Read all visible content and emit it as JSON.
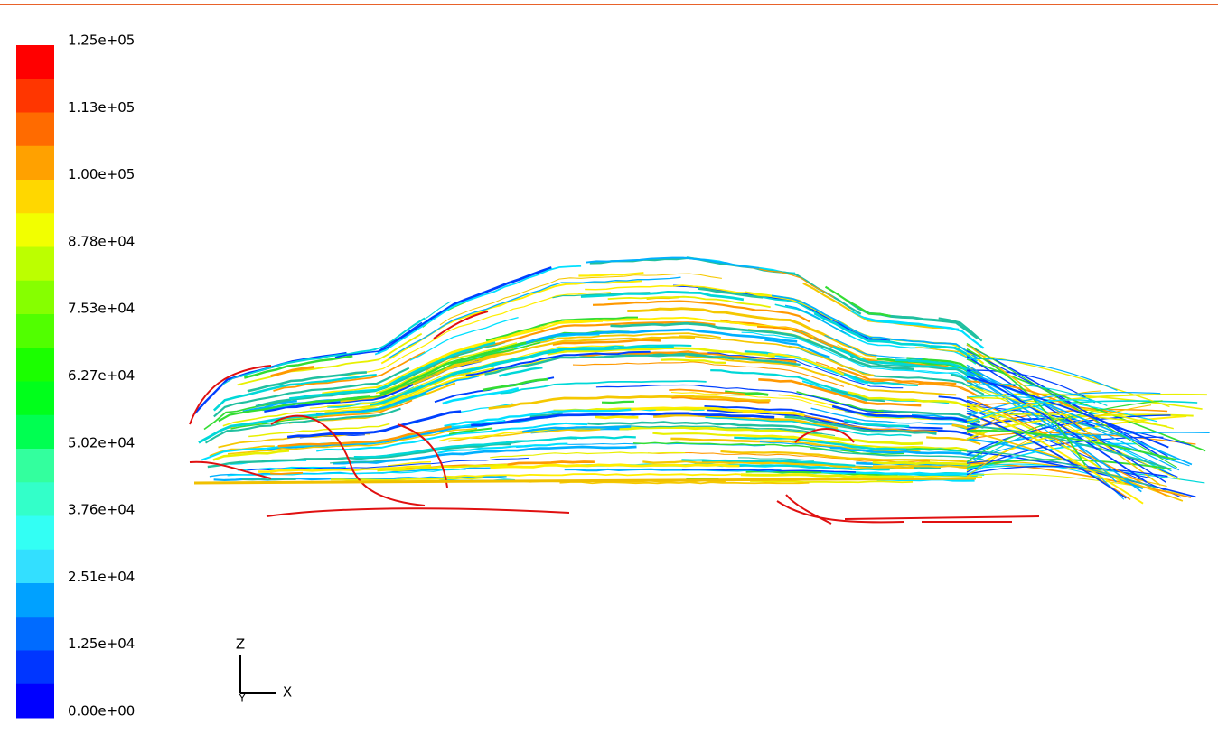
{
  "colorbar": {
    "labels": [
      "1.25e+05",
      "1.13e+05",
      "1.00e+05",
      "8.78e+04",
      "7.53e+04",
      "6.27e+04",
      "5.02e+04",
      "3.76e+04",
      "2.51e+04",
      "1.25e+04",
      "0.00e+00"
    ]
  },
  "axes": {
    "z": "Z",
    "y": "Y",
    "x": "X"
  }
}
